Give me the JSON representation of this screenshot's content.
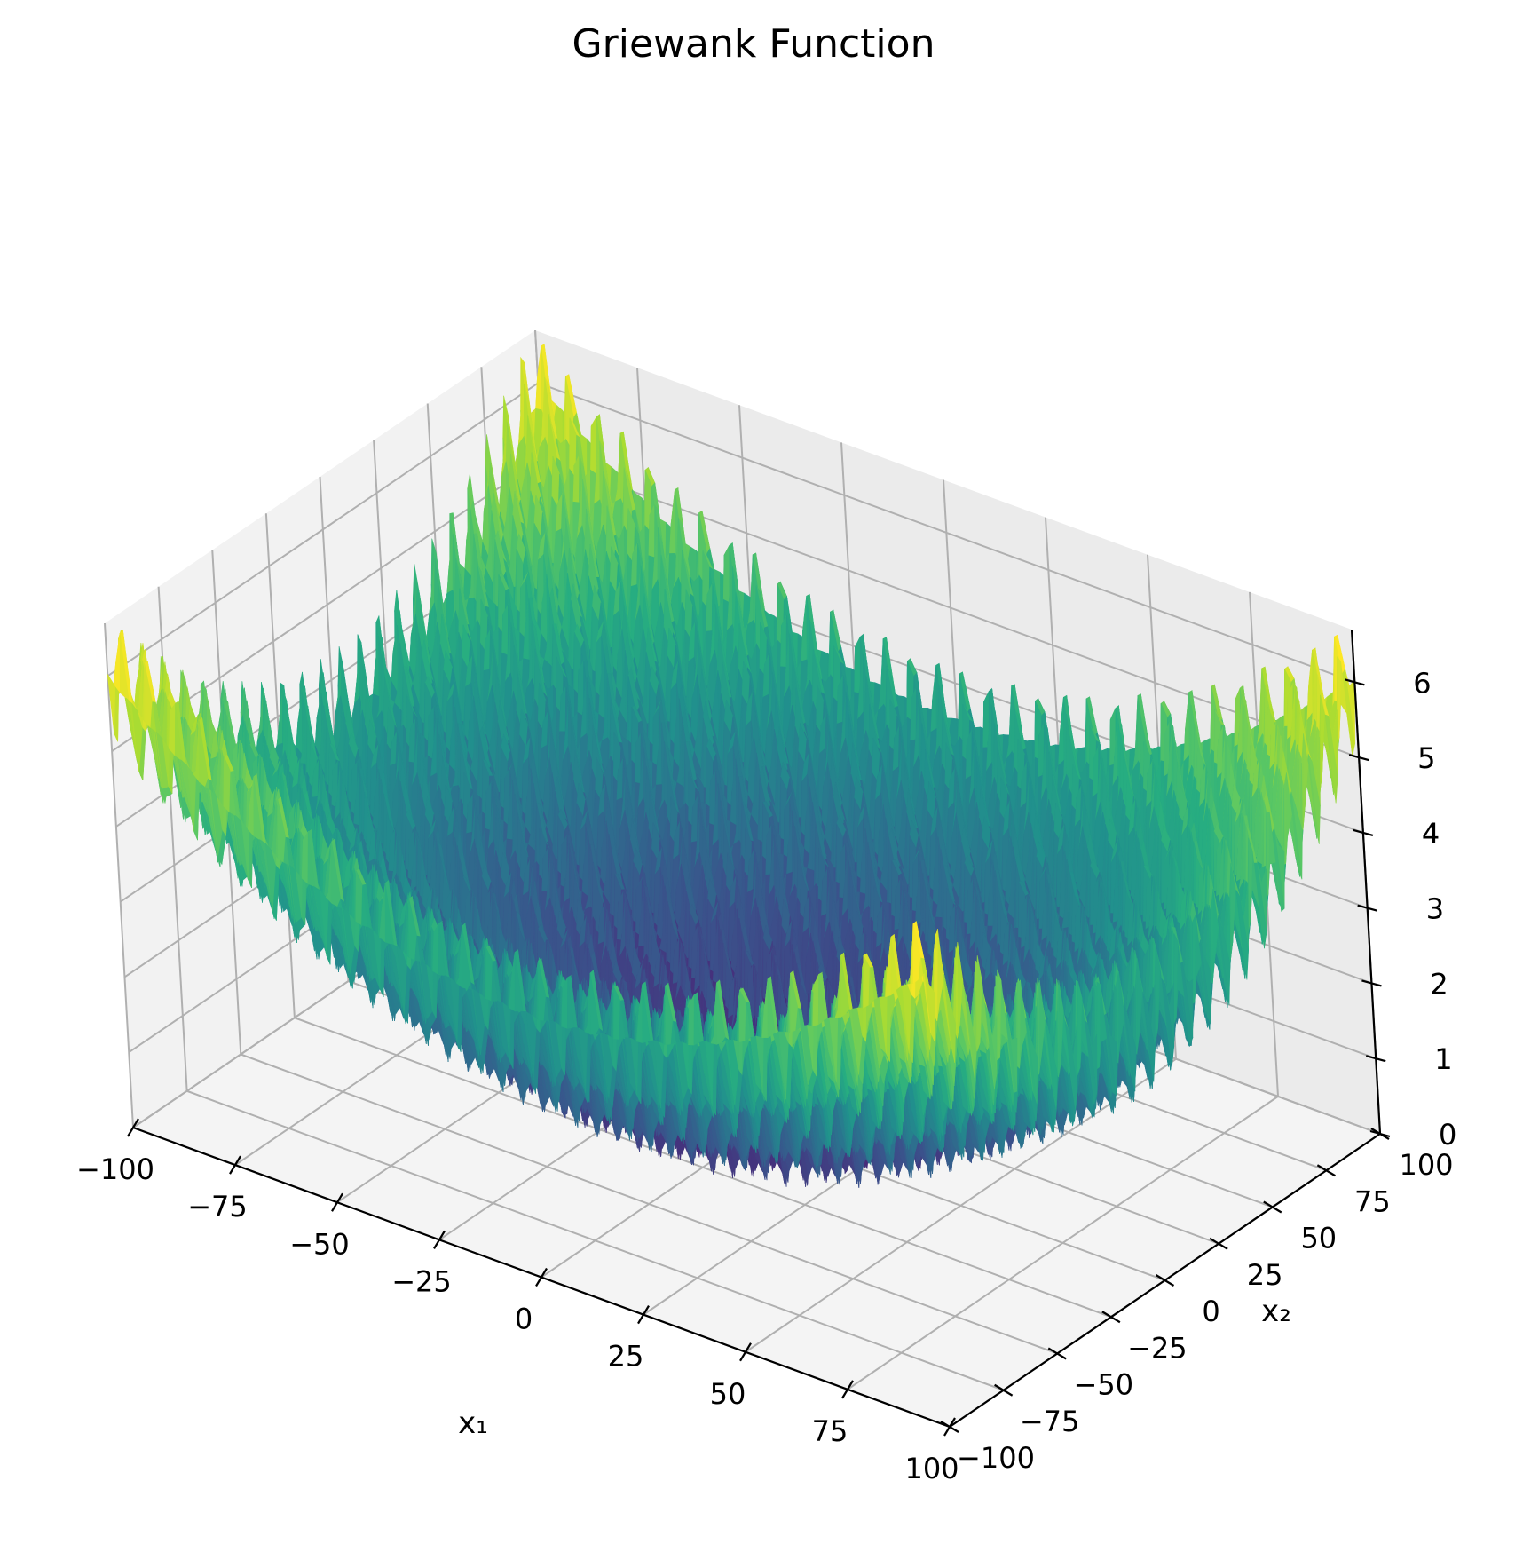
{
  "chart_data": {
    "type": "surface",
    "title": "Griewank Function",
    "function": "f(x1, x2) = 1 + (x1^2 + x2^2) / 4000 - cos(x1) * cos(x2 / sqrt(2))",
    "xlabel": "x₁",
    "ylabel": "x₂",
    "zlabel": "",
    "xlim": [
      -100,
      100
    ],
    "ylim": [
      -100,
      100
    ],
    "zlim": [
      0,
      6.7
    ],
    "xticks": [
      -100,
      -75,
      -50,
      -25,
      0,
      25,
      50,
      75,
      100
    ],
    "yticks": [
      -100,
      -75,
      -50,
      -25,
      0,
      25,
      50,
      75,
      100
    ],
    "zticks": [
      0,
      1,
      2,
      3,
      4,
      5,
      6
    ],
    "xtick_labels": [
      "−100",
      "−75",
      "−50",
      "−25",
      "0",
      "25",
      "50",
      "75",
      "100"
    ],
    "ytick_labels": [
      "−100",
      "−75",
      "−50",
      "−25",
      "0",
      "25",
      "50",
      "75",
      "100"
    ],
    "ztick_labels": [
      "0",
      "1",
      "2",
      "3",
      "4",
      "5",
      "6"
    ],
    "colormap": "viridis",
    "grid": true,
    "pane_colors": {
      "left": "#f2f2f2",
      "back": "#ebebeb",
      "floor": "#f4f4f4"
    },
    "grid_color": "#b0b0b0"
  }
}
